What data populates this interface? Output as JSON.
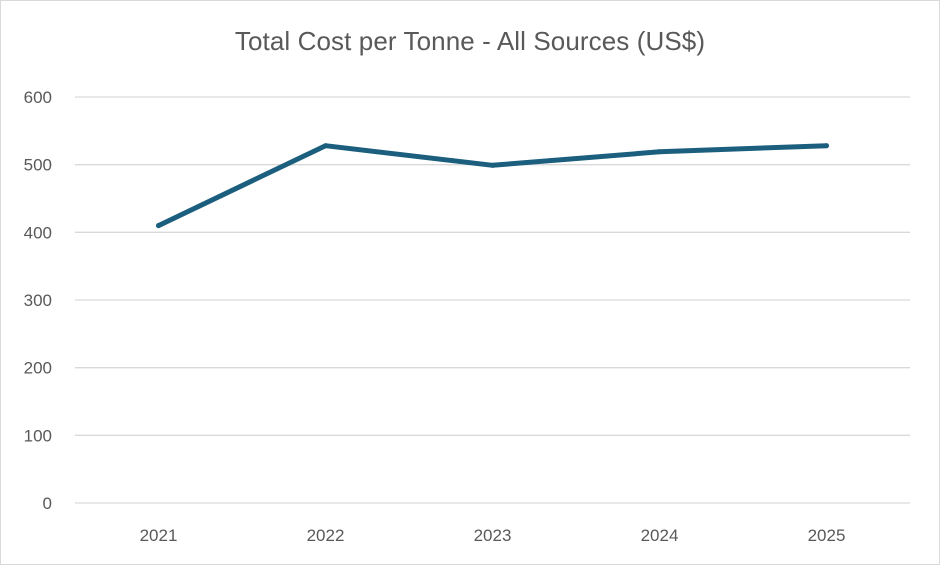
{
  "chart_data": {
    "type": "line",
    "title": "Total Cost per Tonne - All Sources (US$)",
    "categories": [
      "2021",
      "2022",
      "2023",
      "2024",
      "2025"
    ],
    "series": [
      {
        "values": [
          410,
          528,
          499,
          519,
          528
        ]
      }
    ],
    "ylim": [
      0,
      600
    ],
    "yticks": [
      0,
      100,
      200,
      300,
      400,
      500,
      600
    ],
    "xlabel": "",
    "ylabel": "",
    "grid": true,
    "legend": "none",
    "colors": {
      "series": "#1b5e7e",
      "grid": "#d9d9d9",
      "text": "#595959"
    }
  }
}
